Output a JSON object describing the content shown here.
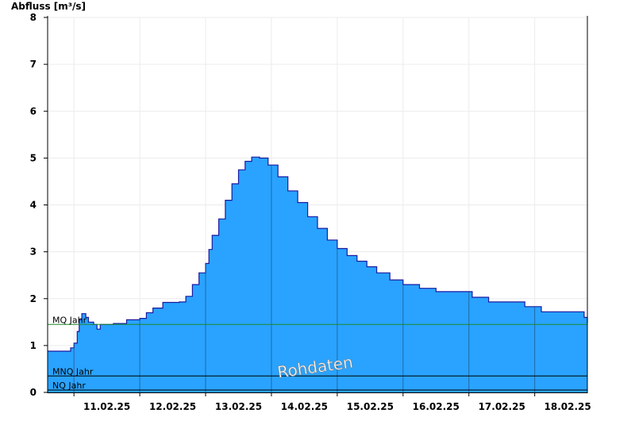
{
  "chart_data": {
    "type": "area",
    "ylabel": "Abfluss [m³/s]",
    "ylim": [
      0,
      8
    ],
    "yticks": [
      0,
      1,
      2,
      3,
      4,
      5,
      6,
      7,
      8
    ],
    "xlim_days": [
      -0.4,
      7.8
    ],
    "xticks": [
      {
        "day": 0.5,
        "label": "11.02.25"
      },
      {
        "day": 1.5,
        "label": "12.02.25"
      },
      {
        "day": 2.5,
        "label": "13.02.25"
      },
      {
        "day": 3.5,
        "label": "14.02.25"
      },
      {
        "day": 4.5,
        "label": "15.02.25"
      },
      {
        "day": 5.5,
        "label": "16.02.25"
      },
      {
        "day": 6.5,
        "label": "17.02.25"
      },
      {
        "day": 7.5,
        "label": "18.02.25"
      }
    ],
    "series": [
      {
        "color": "#29a3ff",
        "line_color": "#1a1aa0",
        "points": [
          [
            -0.4,
            0.88
          ],
          [
            -0.1,
            0.88
          ],
          [
            -0.05,
            0.95
          ],
          [
            0.0,
            1.05
          ],
          [
            0.05,
            1.3
          ],
          [
            0.08,
            1.55
          ],
          [
            0.12,
            1.68
          ],
          [
            0.18,
            1.6
          ],
          [
            0.22,
            1.5
          ],
          [
            0.3,
            1.45
          ],
          [
            0.35,
            1.35
          ],
          [
            0.4,
            1.45
          ],
          [
            0.6,
            1.47
          ],
          [
            0.8,
            1.55
          ],
          [
            1.0,
            1.58
          ],
          [
            1.1,
            1.7
          ],
          [
            1.2,
            1.8
          ],
          [
            1.35,
            1.92
          ],
          [
            1.6,
            1.93
          ],
          [
            1.7,
            2.05
          ],
          [
            1.8,
            2.3
          ],
          [
            1.9,
            2.55
          ],
          [
            2.0,
            2.75
          ],
          [
            2.05,
            3.05
          ],
          [
            2.1,
            3.35
          ],
          [
            2.2,
            3.7
          ],
          [
            2.3,
            4.1
          ],
          [
            2.4,
            4.45
          ],
          [
            2.5,
            4.75
          ],
          [
            2.6,
            4.93
          ],
          [
            2.7,
            5.02
          ],
          [
            2.82,
            5.0
          ],
          [
            2.95,
            4.85
          ],
          [
            3.1,
            4.6
          ],
          [
            3.25,
            4.3
          ],
          [
            3.4,
            4.05
          ],
          [
            3.55,
            3.75
          ],
          [
            3.7,
            3.5
          ],
          [
            3.85,
            3.25
          ],
          [
            4.0,
            3.07
          ],
          [
            4.15,
            2.92
          ],
          [
            4.3,
            2.8
          ],
          [
            4.45,
            2.68
          ],
          [
            4.6,
            2.55
          ],
          [
            4.8,
            2.4
          ],
          [
            5.0,
            2.3
          ],
          [
            5.25,
            2.22
          ],
          [
            5.5,
            2.15
          ],
          [
            5.85,
            2.15
          ],
          [
            6.05,
            2.03
          ],
          [
            6.3,
            1.93
          ],
          [
            6.6,
            1.93
          ],
          [
            6.85,
            1.83
          ],
          [
            7.1,
            1.72
          ],
          [
            7.5,
            1.72
          ],
          [
            7.75,
            1.6
          ],
          [
            7.8,
            1.48
          ]
        ]
      }
    ],
    "reference_lines": [
      {
        "label": "MQ Jahr",
        "value": 1.45,
        "color": "#1e8a2a"
      },
      {
        "label": "MNQ Jahr",
        "value": 0.35,
        "color": "#000000"
      },
      {
        "label": "NQ Jahr",
        "value": 0.05,
        "color": "#000000"
      }
    ],
    "watermark": "Rohdaten",
    "grid": true
  }
}
